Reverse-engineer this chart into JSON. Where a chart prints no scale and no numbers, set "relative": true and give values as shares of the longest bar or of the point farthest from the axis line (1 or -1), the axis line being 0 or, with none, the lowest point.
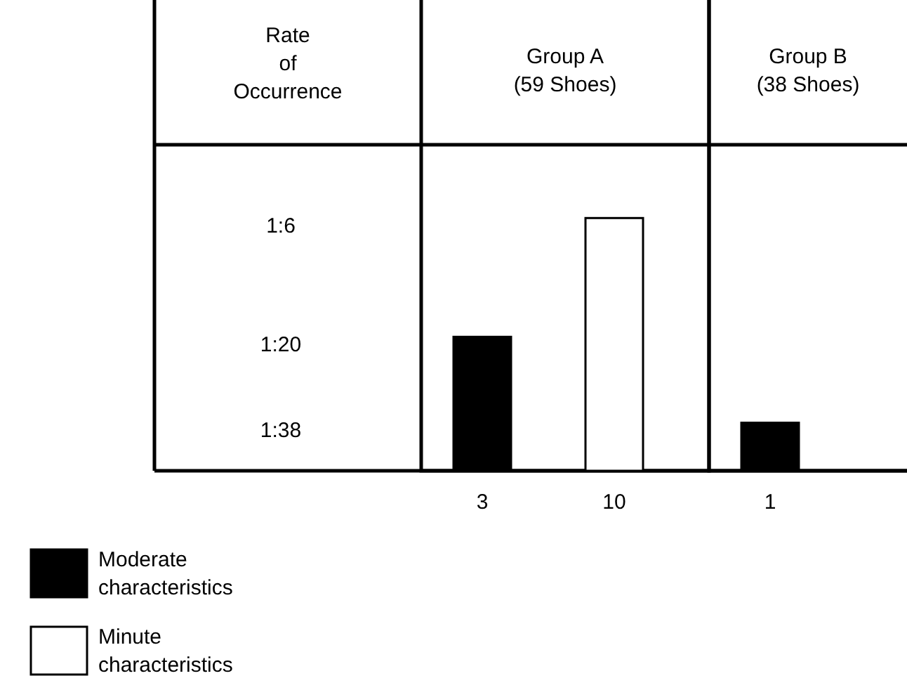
{
  "chart_data": {
    "type": "bar",
    "relative": true,
    "ylabel": "Rate\nof\nOccurrence",
    "categories": [
      "Group A\n(59 Shoes)",
      "Group B\n(38 Shoes)"
    ],
    "series": [
      {
        "name": "Moderate characteristics",
        "color": "#000000",
        "values": [
          0.53,
          0.19
        ]
      },
      {
        "name": "Minute characteristics",
        "color": "#ffffff",
        "values": [
          1,
          null
        ]
      }
    ],
    "annotations": [
      "1:6",
      "1:20",
      "1:38",
      "3",
      "10",
      "1"
    ],
    "legend": "bottom left"
  }
}
